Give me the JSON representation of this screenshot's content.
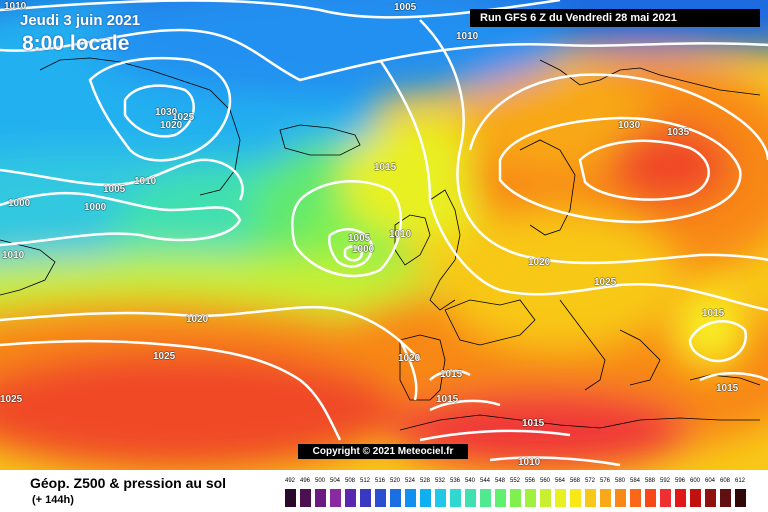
{
  "header": {
    "date": "Jeudi 3 juin 2021",
    "time": "8:00 locale",
    "run_info": "Run GFS 6 Z du Vendredi 28 mai 2021"
  },
  "map": {
    "copyright": "Copyright © 2021 Meteociel.fr",
    "isobar_labels": [
      {
        "text": "1010"
      },
      {
        "text": "1005"
      },
      {
        "text": "1010"
      },
      {
        "text": "1030"
      },
      {
        "text": "1025"
      },
      {
        "text": "1020"
      },
      {
        "text": "1005"
      },
      {
        "text": "1010"
      },
      {
        "text": "1000"
      },
      {
        "text": "1000"
      },
      {
        "text": "1010"
      },
      {
        "text": "1015"
      },
      {
        "text": "1010"
      },
      {
        "text": "1005"
      },
      {
        "text": "1000"
      },
      {
        "text": "1020"
      },
      {
        "text": "1025"
      },
      {
        "text": "1025"
      },
      {
        "text": "1020"
      },
      {
        "text": "1015"
      },
      {
        "text": "1015"
      },
      {
        "text": "1015"
      },
      {
        "text": "1010"
      },
      {
        "text": "1030"
      },
      {
        "text": "1035"
      },
      {
        "text": "1020"
      },
      {
        "text": "1025"
      },
      {
        "text": "1015"
      },
      {
        "text": "1015"
      }
    ]
  },
  "footer": {
    "product": "Géop. Z500 & pression au sol",
    "lead": "(+ 144h)"
  },
  "legend": {
    "ticks": [
      "492",
      "496",
      "500",
      "504",
      "508",
      "512",
      "516",
      "520",
      "524",
      "528",
      "532",
      "536",
      "540",
      "544",
      "548",
      "552",
      "556",
      "560",
      "564",
      "568",
      "572",
      "576",
      "580",
      "584",
      "588",
      "592",
      "596",
      "600",
      "604",
      "608",
      "612"
    ],
    "colors": [
      "#2a0a2a",
      "#4a1050",
      "#6a1a80",
      "#8a2aa0",
      "#5a28b0",
      "#3a38c0",
      "#2a50d0",
      "#1a70e0",
      "#1090f0",
      "#10b0f0",
      "#20c8e8",
      "#30d8d0",
      "#40e0b0",
      "#50e890",
      "#60f070",
      "#80f050",
      "#a0f040",
      "#c8f030",
      "#e8f020",
      "#f8e818",
      "#f8c818",
      "#f8a818",
      "#f88818",
      "#f86818",
      "#f84818",
      "#f03030",
      "#e01818",
      "#c01010",
      "#901010",
      "#601010",
      "#300808"
    ],
    "colors_cont": "end"
  },
  "colors": {
    "isobar": "#ffffff",
    "coast": "#000000"
  }
}
